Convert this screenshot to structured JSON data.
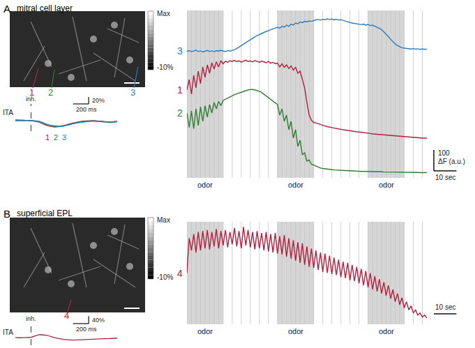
{
  "panels": [
    {
      "label": "A",
      "title": "mitral cell layer",
      "colorbar": {
        "max_label": "Max",
        "min_label": "-10%"
      }
    },
    {
      "label": "B",
      "title": "superficial EPL",
      "colorbar": {
        "max_label": "Max",
        "min_label": "-10%"
      }
    }
  ],
  "chart_data": [
    {
      "type": "line",
      "tick_labels": false,
      "xlim": [
        0,
        106
      ],
      "ylim": [
        0,
        800
      ],
      "x": [
        0,
        1,
        2,
        3,
        4,
        5,
        6,
        7,
        8,
        9,
        10,
        11,
        12,
        13,
        14,
        15,
        16,
        17,
        18,
        19,
        20,
        21,
        22,
        23,
        24,
        25,
        26,
        27,
        28,
        29,
        30,
        31,
        32,
        33,
        34,
        35,
        36,
        37,
        38,
        39,
        40,
        41,
        42,
        43,
        44,
        45,
        46,
        47,
        48,
        49,
        50,
        51,
        52,
        53,
        54,
        55,
        56,
        57,
        58,
        59,
        60,
        61,
        62,
        63,
        64,
        65,
        66,
        67,
        68,
        69,
        70,
        71,
        72,
        73,
        74,
        75,
        76,
        77,
        78,
        79,
        80,
        81,
        82,
        83,
        84,
        85,
        86,
        87,
        88,
        89,
        90,
        91,
        92,
        93,
        94,
        95,
        96,
        97,
        98,
        99,
        100,
        101,
        102,
        103,
        104,
        105,
        106
      ],
      "odor_windows": [
        {
          "x0": 0,
          "x1": 16,
          "label": "odor"
        },
        {
          "x0": 40,
          "x1": 56,
          "label": "odor"
        },
        {
          "x0": 80,
          "x1": 96,
          "label": "odor"
        }
      ],
      "sniff_times": [
        0,
        2,
        4,
        6,
        8,
        10,
        12,
        14,
        16,
        20,
        24,
        28,
        32,
        36,
        40,
        42,
        44,
        46,
        48,
        50,
        52,
        54,
        56,
        60,
        64,
        68,
        72,
        76,
        80,
        82,
        84,
        86,
        88,
        90,
        92,
        94,
        96,
        100,
        104
      ],
      "scale_bar": {
        "x": 10,
        "x_label": "10 sec",
        "y": 100,
        "y_label": [
          "100",
          "ΔF (a.u.)"
        ]
      },
      "series": [
        {
          "name": "3",
          "color": "#2b7bbf",
          "values": [
            605,
            608,
            603,
            606,
            610,
            604,
            607,
            602,
            606,
            609,
            604,
            607,
            603,
            608,
            605,
            610,
            606,
            604,
            608,
            606,
            609,
            612,
            618,
            625,
            632,
            640,
            648,
            655,
            662,
            668,
            674,
            680,
            686,
            690,
            695,
            700,
            704,
            708,
            712,
            716,
            720,
            715,
            725,
            720,
            730,
            724,
            735,
            730,
            740,
            736,
            745,
            742,
            748,
            745,
            750,
            748,
            752,
            755,
            757,
            754,
            758,
            756,
            760,
            757,
            759,
            755,
            758,
            754,
            756,
            752,
            748,
            745,
            742,
            740,
            738,
            735,
            733,
            732,
            735,
            730,
            733,
            728,
            730,
            725,
            722,
            715,
            708,
            698,
            688,
            675,
            662,
            650,
            640,
            632,
            626,
            622,
            620,
            618,
            617,
            616,
            618,
            615,
            617,
            614,
            616,
            615,
            614
          ]
        },
        {
          "name": "1",
          "color": "#b3203f",
          "values": [
            420,
            470,
            400,
            490,
            430,
            510,
            450,
            530,
            480,
            540,
            500,
            550,
            520,
            555,
            530,
            560,
            545,
            558,
            552,
            560,
            556,
            562,
            555,
            560,
            553,
            558,
            562,
            556,
            559,
            554,
            560,
            557,
            552,
            558,
            555,
            550,
            556,
            548,
            552,
            546,
            548,
            530,
            545,
            528,
            540,
            522,
            535,
            515,
            528,
            500,
            510,
            470,
            430,
            360,
            300,
            275,
            265,
            262,
            258,
            255,
            250,
            248,
            245,
            242,
            240,
            238,
            236,
            233,
            232,
            230,
            228,
            226,
            225,
            224,
            222,
            220,
            219,
            218,
            216,
            215,
            214,
            212,
            210,
            209,
            208,
            207,
            206,
            205,
            204,
            203,
            202,
            201,
            200,
            199,
            198,
            197,
            196,
            195,
            195,
            194,
            193,
            192,
            192,
            191,
            190,
            190,
            189
          ]
        },
        {
          "name": "2",
          "color": "#2f7d32",
          "values": [
            310,
            240,
            320,
            235,
            330,
            250,
            340,
            270,
            345,
            290,
            350,
            310,
            360,
            330,
            365,
            345,
            370,
            375,
            380,
            386,
            392,
            398,
            402,
            406,
            410,
            414,
            418,
            420,
            422,
            423,
            420,
            418,
            414,
            408,
            400,
            392,
            384,
            376,
            368,
            360,
            350,
            300,
            330,
            270,
            300,
            230,
            270,
            190,
            230,
            150,
            180,
            110,
            120,
            80,
            85,
            65,
            60,
            55,
            50,
            47,
            45,
            43,
            41,
            40,
            39,
            38,
            37,
            36,
            36,
            35,
            35,
            34,
            34,
            33,
            33,
            32,
            32,
            31,
            31,
            31,
            30,
            30,
            30,
            29,
            29,
            29,
            29,
            28,
            28,
            28,
            28,
            28,
            27,
            27,
            27,
            27,
            27,
            27,
            26,
            26,
            26,
            26,
            26,
            25,
            25,
            25,
            25
          ]
        }
      ]
    },
    {
      "type": "line",
      "tick_labels": false,
      "title": "ITA",
      "xlim": [
        -200,
        1100
      ],
      "ylim": [
        -30,
        40
      ],
      "x": [
        -200,
        -100,
        0,
        100,
        200,
        300,
        400,
        500,
        600,
        700,
        800,
        900,
        1000,
        1100
      ],
      "annotations": [
        {
          "text": "inh.",
          "x": 0
        }
      ],
      "scale_bar": {
        "x": 200,
        "x_label": "200 ms",
        "y": 20,
        "y_label": [
          "20%"
        ]
      },
      "series": [
        {
          "name": "1",
          "color": "#b3203f",
          "values": [
            2,
            1,
            0,
            -4,
            -14,
            -18,
            -15,
            -9,
            -4,
            -1,
            0,
            -2,
            -4,
            -2
          ]
        },
        {
          "name": "2",
          "color": "#2f7d32",
          "values": [
            1,
            0,
            0,
            -3,
            -12,
            -17,
            -16,
            -10,
            -5,
            -2,
            -1,
            -3,
            -5,
            -3
          ]
        },
        {
          "name": "3",
          "color": "#2b7bbf",
          "values": [
            0,
            1,
            0,
            -2,
            -10,
            -15,
            -16,
            -11,
            -6,
            -3,
            -1,
            -2,
            -4,
            -2
          ]
        }
      ]
    },
    {
      "type": "line",
      "tick_labels": false,
      "xlim": [
        0,
        106
      ],
      "ylim": [
        0,
        500
      ],
      "x": [
        0,
        1,
        2,
        3,
        4,
        5,
        6,
        7,
        8,
        9,
        10,
        11,
        12,
        13,
        14,
        15,
        16,
        17,
        18,
        19,
        20,
        21,
        22,
        23,
        24,
        25,
        26,
        27,
        28,
        29,
        30,
        31,
        32,
        33,
        34,
        35,
        36,
        37,
        38,
        39,
        40,
        41,
        42,
        43,
        44,
        45,
        46,
        47,
        48,
        49,
        50,
        51,
        52,
        53,
        54,
        55,
        56,
        57,
        58,
        59,
        60,
        61,
        62,
        63,
        64,
        65,
        66,
        67,
        68,
        69,
        70,
        71,
        72,
        73,
        74,
        75,
        76,
        77,
        78,
        79,
        80,
        81,
        82,
        83,
        84,
        85,
        86,
        87,
        88,
        89,
        90,
        91,
        92,
        93,
        94,
        95,
        96,
        97,
        98,
        99,
        100,
        101,
        102,
        103,
        104,
        105,
        106
      ],
      "odor_windows": [
        {
          "x0": 0,
          "x1": 16,
          "label": "odor"
        },
        {
          "x0": 40,
          "x1": 56,
          "label": "odor"
        },
        {
          "x0": 80,
          "x1": 96,
          "label": "odor"
        }
      ],
      "sniff_times": [
        0,
        2,
        4,
        6,
        8,
        10,
        12,
        14,
        16,
        20,
        24,
        28,
        32,
        36,
        40,
        42,
        44,
        46,
        48,
        50,
        52,
        54,
        56,
        60,
        64,
        68,
        72,
        76,
        80,
        82,
        84,
        86,
        88,
        90,
        92,
        94,
        96,
        100,
        104
      ],
      "scale_bar": {
        "x": 10,
        "x_label": "10 sec"
      },
      "series": [
        {
          "name": "4",
          "color": "#b3203f",
          "values": [
            250,
            420,
            360,
            440,
            350,
            450,
            360,
            455,
            370,
            460,
            365,
            450,
            380,
            465,
            370,
            455,
            385,
            460,
            375,
            450,
            390,
            470,
            380,
            455,
            370,
            475,
            385,
            460,
            375,
            450,
            365,
            455,
            370,
            445,
            360,
            450,
            355,
            440,
            350,
            445,
            345,
            430,
            340,
            435,
            330,
            420,
            320,
            410,
            310,
            400,
            300,
            395,
            290,
            380,
            280,
            370,
            275,
            360,
            265,
            350,
            255,
            345,
            250,
            335,
            245,
            325,
            240,
            315,
            230,
            305,
            225,
            300,
            215,
            290,
            210,
            280,
            200,
            270,
            190,
            260,
            180,
            250,
            170,
            235,
            160,
            220,
            150,
            205,
            140,
            190,
            125,
            170,
            110,
            150,
            95,
            130,
            80,
            110,
            70,
            90,
            55,
            70,
            45,
            55,
            35,
            45,
            30
          ]
        }
      ]
    },
    {
      "type": "line",
      "tick_labels": false,
      "title": "ITA",
      "xlim": [
        -200,
        1100
      ],
      "ylim": [
        -40,
        60
      ],
      "x": [
        -200,
        -100,
        0,
        100,
        200,
        300,
        400,
        500,
        600,
        700,
        800,
        900,
        1000,
        1100
      ],
      "annotations": [
        {
          "text": "inh.",
          "x": 0
        }
      ],
      "scale_bar": {
        "x": 200,
        "x_label": "200 ms",
        "y": 40,
        "y_label": [
          "40%"
        ]
      },
      "series": [
        {
          "color": "#b3203f",
          "values": [
            0,
            0,
            2,
            15,
            12,
            0,
            -8,
            -12,
            -12,
            -10,
            -8,
            -6,
            -4,
            -3
          ]
        }
      ]
    }
  ]
}
